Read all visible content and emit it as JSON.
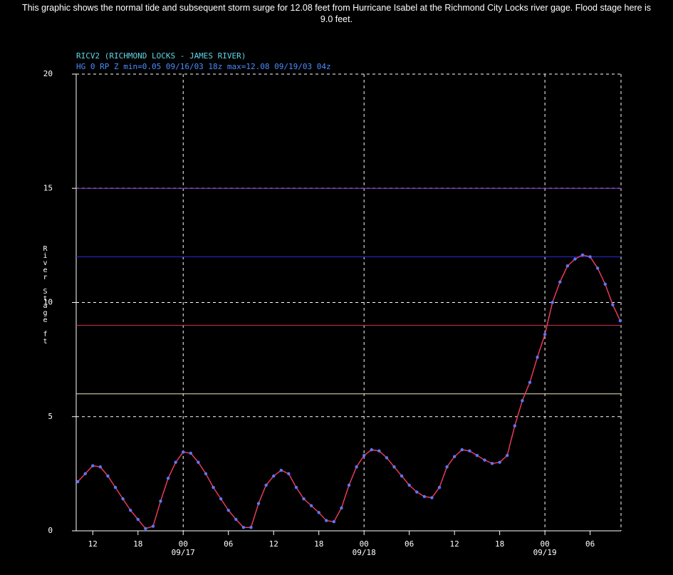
{
  "chart_data": {
    "type": "line",
    "caption": "This graphic shows the normal tide and subsequent storm surge for 12.08 feet from Hurricane Isabel at the Richmond City Locks river gage. Flood stage here is 9.0 feet.",
    "title": "RICV2 (RICHMOND LOCKS - JAMES RIVER)",
    "subtitle": "HG 0 RP Z min=0.05 09/16/03 18z max=12.08 09/19/03 04z",
    "y_label": "River Stage ft",
    "xlim": [
      9.8,
      82.1
    ],
    "xticks": [
      {
        "value": 12,
        "label": "12"
      },
      {
        "value": 18,
        "label": "18"
      },
      {
        "value": 24,
        "label": "00"
      },
      {
        "value": 30,
        "label": "06"
      },
      {
        "value": 36,
        "label": "12"
      },
      {
        "value": 42,
        "label": "18"
      },
      {
        "value": 48,
        "label": "00"
      },
      {
        "value": 54,
        "label": "06"
      },
      {
        "value": 60,
        "label": "12"
      },
      {
        "value": 66,
        "label": "18"
      },
      {
        "value": 72,
        "label": "00"
      },
      {
        "value": 78,
        "label": "06"
      }
    ],
    "x_date_labels": [
      {
        "value": 24,
        "label": "09/17"
      },
      {
        "value": 48,
        "label": "09/18"
      },
      {
        "value": 72,
        "label": "09/19"
      }
    ],
    "ylim": [
      0,
      20
    ],
    "yticks": [
      0,
      5,
      10,
      15,
      20
    ],
    "grid": true,
    "thresholds": [
      {
        "value": 15,
        "color": "#8a3fd0"
      },
      {
        "value": 12,
        "color": "#2a2ae0"
      },
      {
        "value": 9,
        "color": "#d0304a"
      },
      {
        "value": 6,
        "color": "#f0e6c0"
      }
    ],
    "x": [
      10,
      11,
      12,
      13,
      14,
      15,
      16,
      17,
      18,
      19,
      20,
      21,
      22,
      23,
      24,
      25,
      26,
      27,
      28,
      29,
      30,
      31,
      32,
      33,
      34,
      35,
      36,
      37,
      38,
      39,
      40,
      41,
      42,
      43,
      44,
      45,
      46,
      47,
      48,
      49,
      50,
      51,
      52,
      53,
      54,
      55,
      56,
      57,
      58,
      59,
      60,
      61,
      62,
      63,
      64,
      65,
      66,
      67,
      68,
      69,
      70,
      71,
      72,
      73,
      74,
      75,
      76,
      77,
      78,
      79,
      80,
      81,
      82
    ],
    "series": [
      {
        "name": "RICV2",
        "color": "#e83a5a",
        "marker_color": "#5a78ff",
        "values": [
          2.15,
          2.5,
          2.85,
          2.8,
          2.4,
          1.9,
          1.4,
          0.9,
          0.5,
          0.1,
          0.2,
          1.3,
          2.3,
          3.0,
          3.45,
          3.4,
          3.0,
          2.5,
          1.9,
          1.4,
          0.9,
          0.5,
          0.15,
          0.15,
          1.2,
          2.0,
          2.4,
          2.65,
          2.5,
          1.9,
          1.4,
          1.1,
          0.8,
          0.45,
          0.4,
          1.0,
          2.0,
          2.8,
          3.3,
          3.55,
          3.5,
          3.2,
          2.8,
          2.4,
          2.0,
          1.7,
          1.5,
          1.45,
          1.9,
          2.8,
          3.25,
          3.55,
          3.5,
          3.3,
          3.1,
          2.95,
          3.0,
          3.3,
          4.6,
          5.7,
          6.5,
          7.6,
          8.6,
          10.0,
          10.9,
          11.6,
          11.9,
          12.08,
          12.0,
          11.5,
          10.8,
          9.9,
          9.2
        ]
      }
    ]
  }
}
